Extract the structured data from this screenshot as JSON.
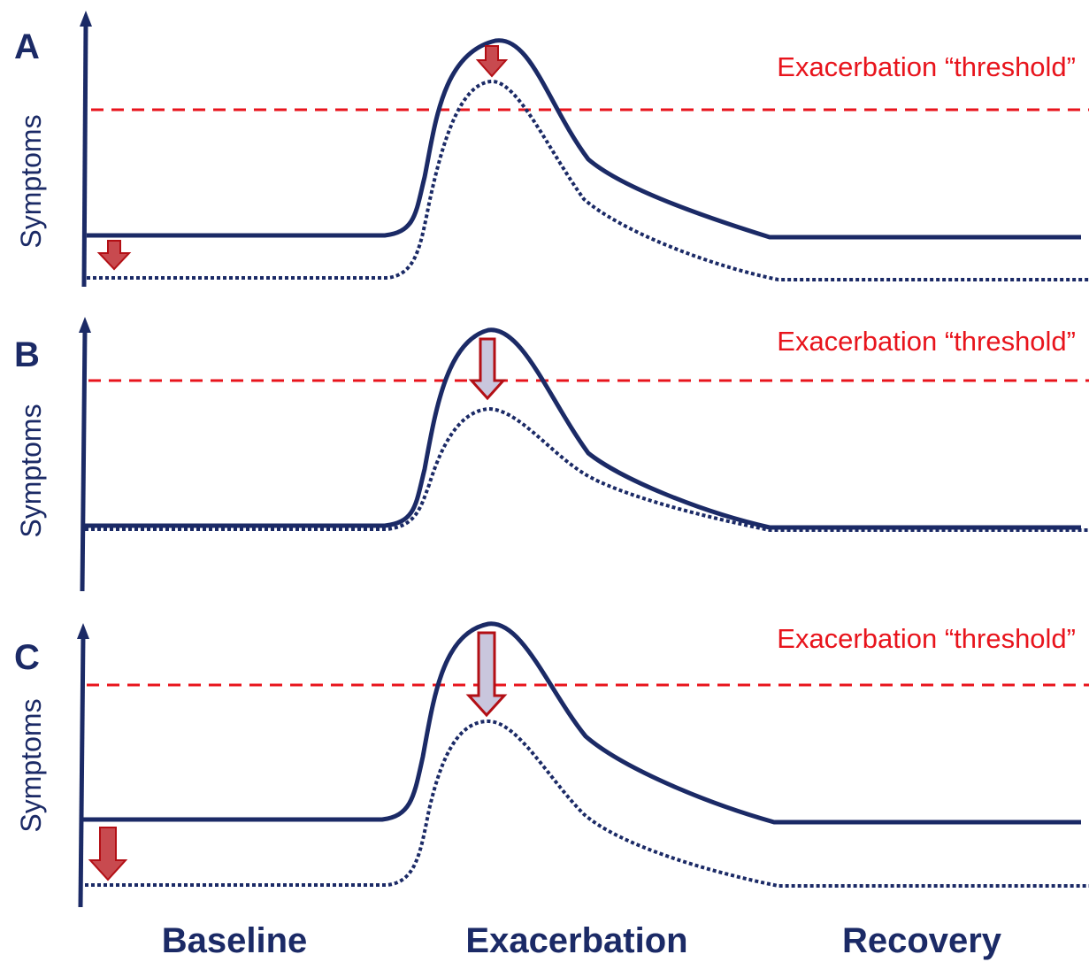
{
  "colors": {
    "navy": "#1b2a66",
    "threshold_red": "#e8141c",
    "arrow_stroke": "#b30f15",
    "arrow_fill_small": "#c84a4f",
    "arrow_fill_large": "#c9c6dd"
  },
  "panels": [
    {
      "letter": "A",
      "y_axis_label": "Symptoms",
      "threshold_label": "Exacerbation “threshold”"
    },
    {
      "letter": "B",
      "y_axis_label": "Symptoms",
      "threshold_label": "Exacerbation “threshold”"
    },
    {
      "letter": "C",
      "y_axis_label": "Symptoms",
      "threshold_label": "Exacerbation “threshold”"
    }
  ],
  "phases": [
    "Baseline",
    "Exacerbation",
    "Recovery"
  ],
  "legend_lines": {
    "solid": "",
    "dotted": ""
  }
}
